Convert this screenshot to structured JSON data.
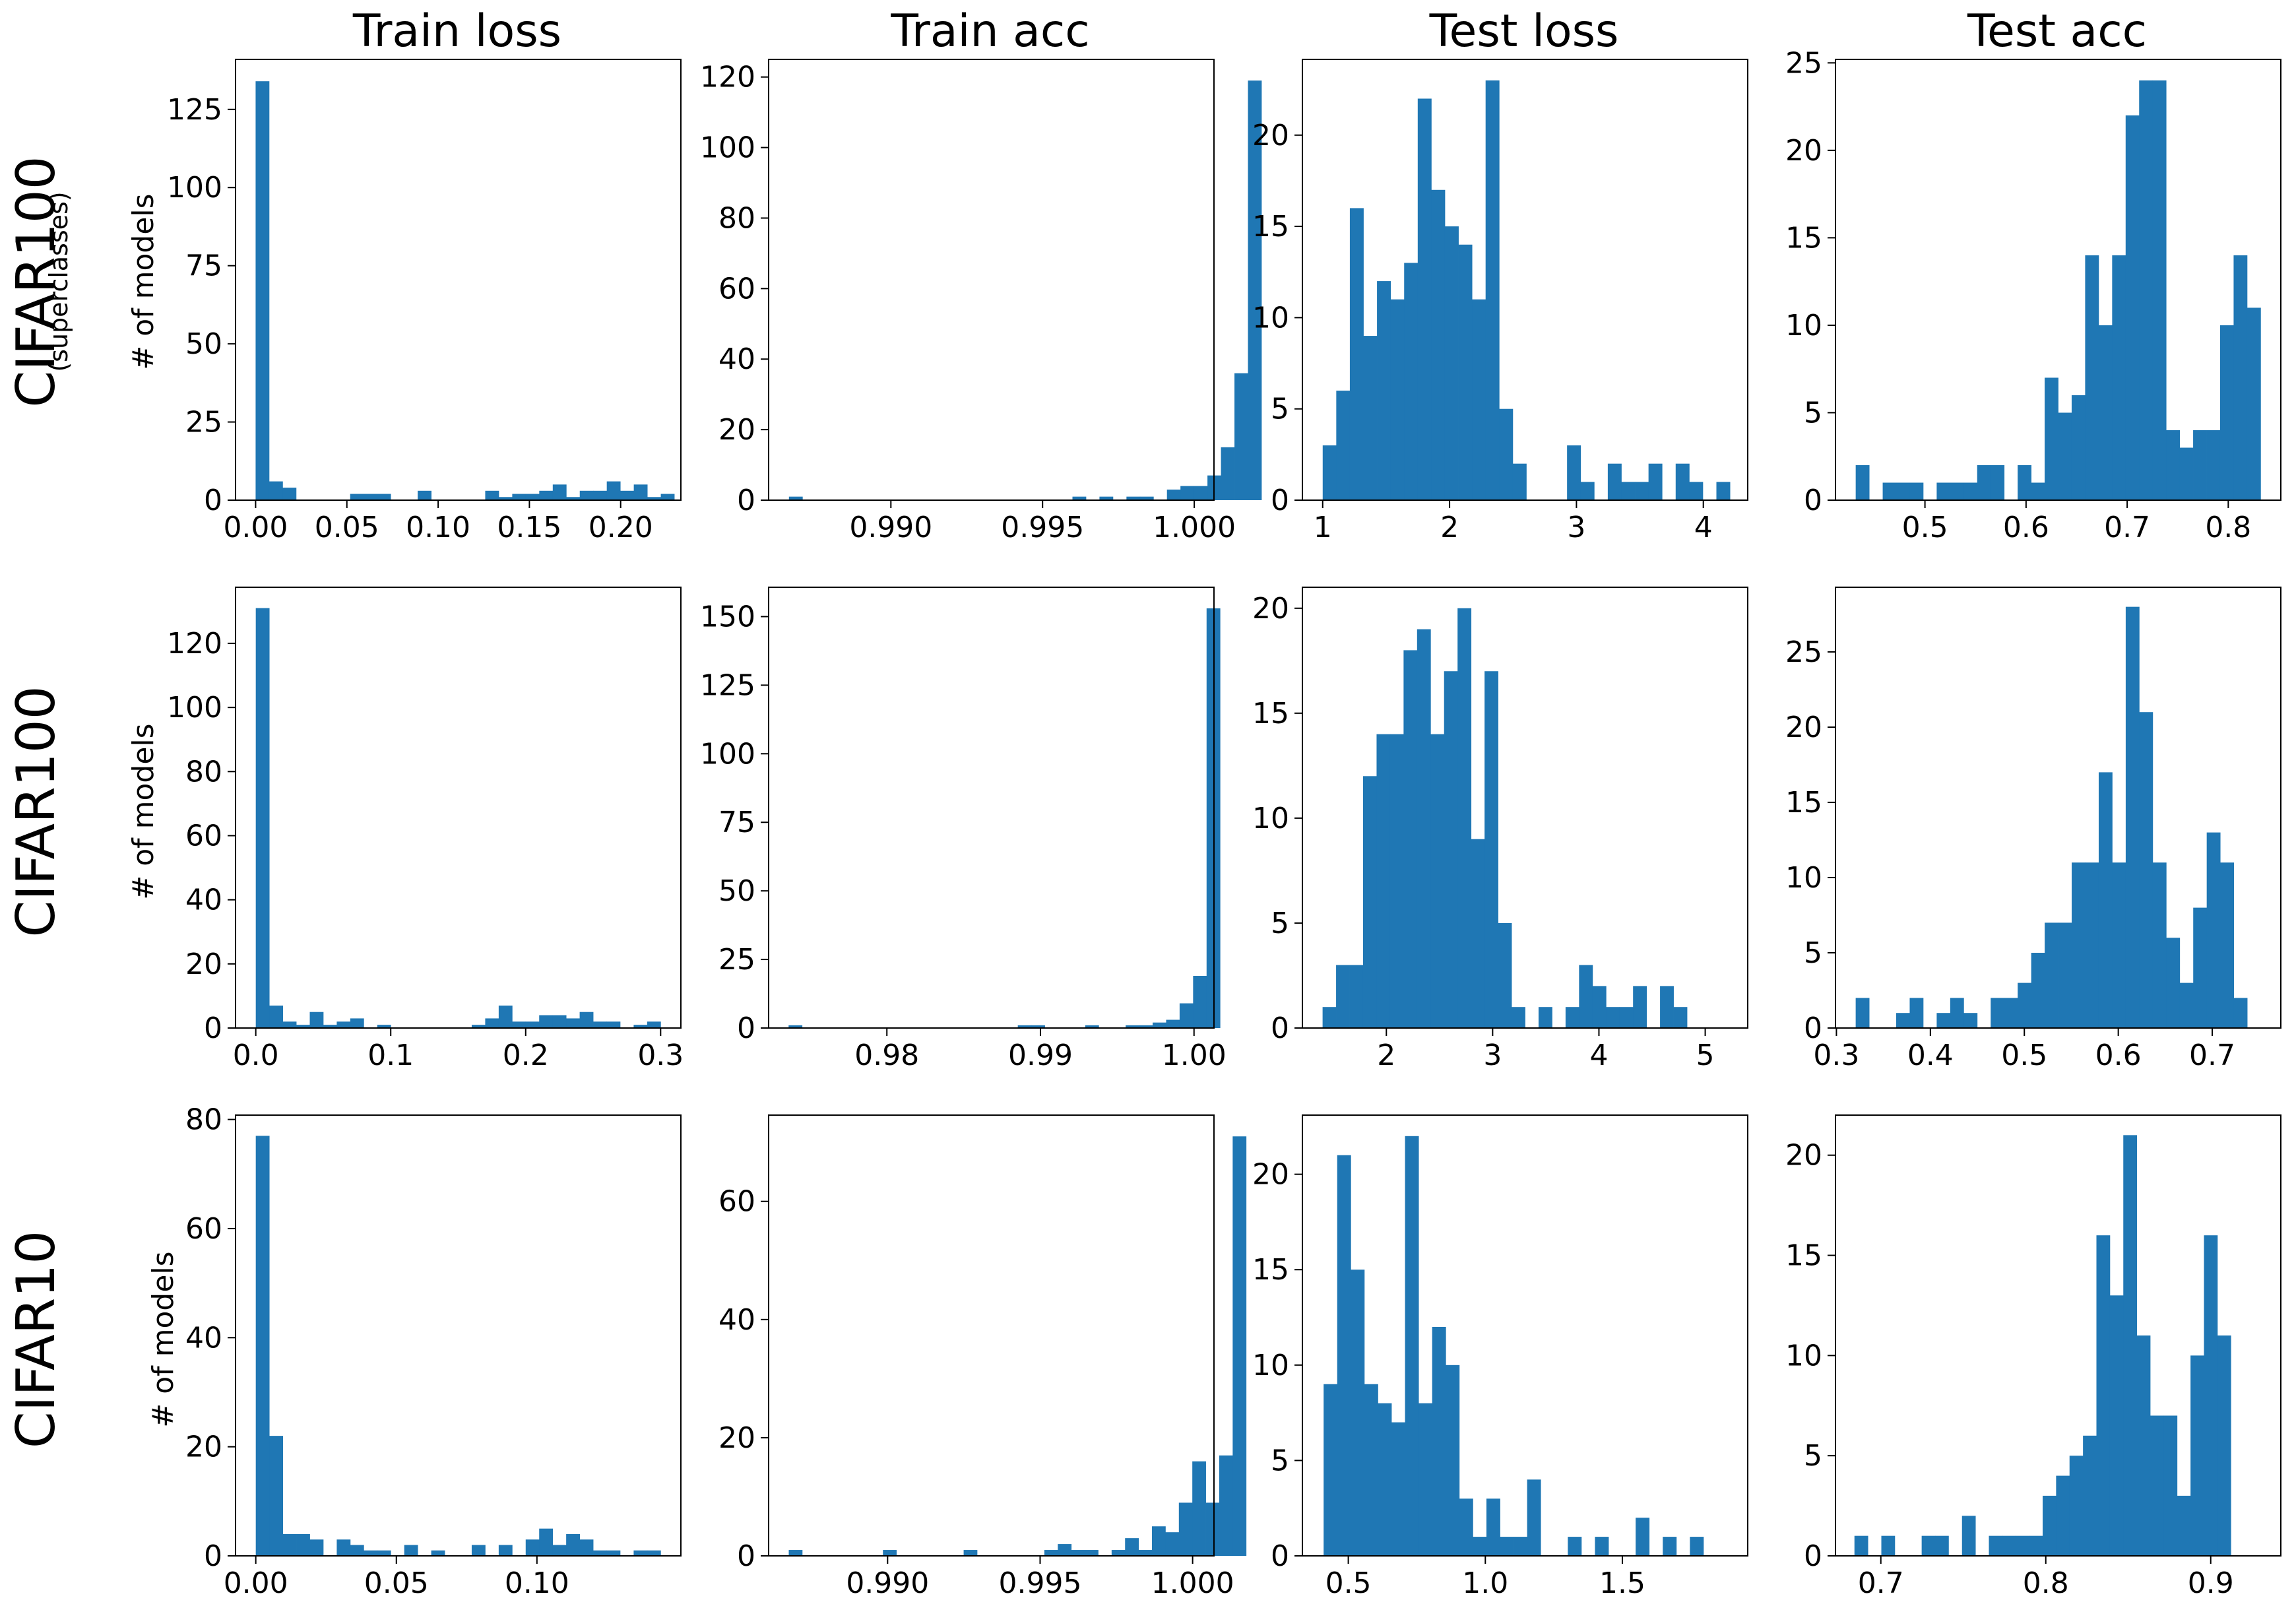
{
  "figure": {
    "bar_color": "#1f77b4",
    "column_titles": [
      "Train loss",
      "Train acc",
      "Test loss",
      "Test acc"
    ],
    "rows": [
      {
        "label": "CIFAR100",
        "sublabel": "(superclasses)",
        "ylabel": "# of models"
      },
      {
        "label": "CIFAR100",
        "sublabel": "",
        "ylabel": "# of models"
      },
      {
        "label": "CIFAR10",
        "sublabel": "",
        "ylabel": "# of models"
      }
    ]
  },
  "chart_data": [
    {
      "type": "bar",
      "title": "Train loss",
      "row_label": "CIFAR100 (superclasses)",
      "ylabel": "# of models",
      "xlabel": "",
      "xlim": [
        -0.011,
        0.233
      ],
      "ylim": [
        0,
        141
      ],
      "xticks": [
        0.0,
        0.05,
        0.1,
        0.15,
        0.2
      ],
      "xtick_labels": [
        "0.00",
        "0.05",
        "0.10",
        "0.15",
        "0.20"
      ],
      "yticks": [
        0,
        25,
        50,
        75,
        100,
        125
      ],
      "ytick_labels": [
        "0",
        "25",
        "50",
        "75",
        "100",
        "125"
      ],
      "bin_start": 0.0,
      "bin_width": 0.0074,
      "values": [
        134,
        6,
        4,
        0,
        0,
        0,
        0,
        2,
        2,
        2,
        0,
        0,
        3,
        0,
        0,
        0,
        0,
        3,
        1,
        2,
        2,
        3,
        5,
        1,
        3,
        3,
        6,
        3,
        5,
        1,
        2
      ]
    },
    {
      "type": "bar",
      "title": "Train acc",
      "row_label": "CIFAR100 (superclasses)",
      "ylabel": "",
      "xlabel": "",
      "xlim": [
        0.98597,
        1.00065
      ],
      "ylim": [
        0,
        125
      ],
      "xticks": [
        0.99,
        0.995,
        1.0
      ],
      "xtick_labels": [
        "0.990",
        "0.995",
        "1.000"
      ],
      "yticks": [
        0,
        20,
        40,
        60,
        80,
        100,
        120
      ],
      "ytick_labels": [
        "0",
        "20",
        "40",
        "60",
        "80",
        "100",
        "120"
      ],
      "bin_start": 0.98664,
      "bin_width": 0.000445,
      "values": [
        1,
        0,
        0,
        0,
        0,
        0,
        0,
        0,
        0,
        0,
        0,
        0,
        0,
        0,
        0,
        0,
        0,
        0,
        0,
        0,
        0,
        1,
        0,
        1,
        0,
        1,
        1,
        0,
        3,
        4,
        4,
        7,
        15,
        36,
        119
      ]
    },
    {
      "type": "bar",
      "title": "Test loss",
      "row_label": "CIFAR100 (superclasses)",
      "ylabel": "",
      "xlabel": "",
      "xlim": [
        0.84,
        4.35
      ],
      "ylim": [
        0,
        24.15
      ],
      "xticks": [
        1,
        2,
        3,
        4
      ],
      "xtick_labels": [
        "1",
        "2",
        "3",
        "4"
      ],
      "yticks": [
        0,
        5,
        10,
        15,
        20
      ],
      "ytick_labels": [
        "0",
        "5",
        "10",
        "15",
        "20"
      ],
      "bin_start": 1.0,
      "bin_width": 0.107,
      "values": [
        3,
        6,
        16,
        9,
        12,
        11,
        13,
        22,
        17,
        15,
        14,
        11,
        23,
        5,
        2,
        0,
        0,
        0,
        3,
        1,
        0,
        2,
        1,
        1,
        2,
        0,
        2,
        1,
        0,
        1
      ]
    },
    {
      "type": "bar",
      "title": "Test acc",
      "row_label": "CIFAR100 (superclasses)",
      "ylabel": "",
      "xlabel": "",
      "xlim": [
        0.4115,
        0.852
      ],
      "ylim": [
        0,
        25.2
      ],
      "xticks": [
        0.5,
        0.6,
        0.7,
        0.8
      ],
      "xtick_labels": [
        "0.5",
        "0.6",
        "0.7",
        "0.8"
      ],
      "yticks": [
        0,
        5,
        10,
        15,
        20,
        25
      ],
      "ytick_labels": [
        "0",
        "5",
        "10",
        "15",
        "20",
        "25"
      ],
      "bin_start": 0.4315,
      "bin_width": 0.01335,
      "values": [
        2,
        0,
        1,
        1,
        1,
        0,
        1,
        1,
        1,
        2,
        2,
        0,
        2,
        1,
        7,
        5,
        6,
        14,
        10,
        14,
        22,
        24,
        24,
        4,
        3,
        4,
        4,
        10,
        14,
        11
      ]
    },
    {
      "type": "bar",
      "title": "Train loss",
      "row_label": "CIFAR100",
      "ylabel": "# of models",
      "xlabel": "",
      "xlim": [
        -0.015,
        0.315
      ],
      "ylim": [
        0,
        137.5
      ],
      "xticks": [
        0.0,
        0.1,
        0.2,
        0.3
      ],
      "xtick_labels": [
        "0.0",
        "0.1",
        "0.2",
        "0.3"
      ],
      "yticks": [
        0,
        20,
        40,
        60,
        80,
        100,
        120
      ],
      "ytick_labels": [
        "0",
        "20",
        "40",
        "60",
        "80",
        "100",
        "120"
      ],
      "bin_start": 0.0,
      "bin_width": 0.01,
      "values": [
        131,
        7,
        2,
        1,
        5,
        1,
        2,
        3,
        0,
        1,
        0,
        0,
        0,
        0,
        0,
        0,
        1,
        3,
        7,
        2,
        2,
        4,
        4,
        3,
        5,
        2,
        2,
        0,
        1,
        2
      ]
    },
    {
      "type": "bar",
      "title": "Train acc",
      "row_label": "CIFAR100",
      "ylabel": "",
      "xlabel": "",
      "xlim": [
        0.9723,
        1.0013
      ],
      "ylim": [
        0,
        160.7
      ],
      "xticks": [
        0.98,
        0.99,
        1.0
      ],
      "xtick_labels": [
        "0.98",
        "0.99",
        "1.00"
      ],
      "yticks": [
        0,
        25,
        50,
        75,
        100,
        125,
        150
      ],
      "ytick_labels": [
        "0",
        "25",
        "50",
        "75",
        "100",
        "125",
        "150"
      ],
      "bin_start": 0.9736,
      "bin_width": 0.000878,
      "values": [
        1,
        0,
        0,
        0,
        0,
        0,
        0,
        0,
        0,
        0,
        0,
        0,
        0,
        0,
        0,
        0,
        0,
        1,
        1,
        0,
        0,
        0,
        1,
        0,
        0,
        1,
        1,
        2,
        3,
        9,
        19,
        153
      ]
    },
    {
      "type": "bar",
      "title": "Test loss",
      "row_label": "CIFAR100",
      "ylabel": "",
      "xlabel": "",
      "xlim": [
        1.21,
        5.4
      ],
      "ylim": [
        0,
        21
      ],
      "xticks": [
        2,
        3,
        4,
        5
      ],
      "xtick_labels": [
        "2",
        "3",
        "4",
        "5"
      ],
      "yticks": [
        0,
        5,
        10,
        15,
        20
      ],
      "ytick_labels": [
        "0",
        "5",
        "10",
        "15",
        "20"
      ],
      "bin_start": 1.4,
      "bin_width": 0.127,
      "values": [
        1,
        3,
        3,
        12,
        14,
        14,
        18,
        19,
        14,
        17,
        20,
        9,
        17,
        5,
        1,
        0,
        1,
        0,
        1,
        3,
        2,
        1,
        1,
        2,
        0,
        2,
        1
      ]
    },
    {
      "type": "bar",
      "title": "Test acc",
      "row_label": "CIFAR100",
      "ylabel": "",
      "xlabel": "",
      "xlim": [
        0.299,
        0.773
      ],
      "ylim": [
        0,
        29.3
      ],
      "xticks": [
        0.3,
        0.4,
        0.5,
        0.6,
        0.7
      ],
      "xtick_labels": [
        "0.3",
        "0.4",
        "0.5",
        "0.6",
        "0.7"
      ],
      "yticks": [
        0,
        5,
        10,
        15,
        20,
        25
      ],
      "ytick_labels": [
        "0",
        "5",
        "10",
        "15",
        "20",
        "25"
      ],
      "bin_start": 0.3205,
      "bin_width": 0.01437,
      "values": [
        2,
        0,
        0,
        1,
        2,
        0,
        1,
        2,
        1,
        0,
        2,
        2,
        3,
        5,
        7,
        7,
        11,
        11,
        17,
        11,
        28,
        21,
        11,
        6,
        3,
        8,
        13,
        11,
        2
      ]
    },
    {
      "type": "bar",
      "title": "Train loss",
      "row_label": "CIFAR10",
      "ylabel": "# of models",
      "xlabel": "",
      "xlim": [
        -0.0072,
        0.1512
      ],
      "ylim": [
        0,
        80.8
      ],
      "xticks": [
        0.0,
        0.05,
        0.1
      ],
      "xtick_labels": [
        "0.00",
        "0.05",
        "0.10"
      ],
      "yticks": [
        0,
        20,
        40,
        60,
        80
      ],
      "ytick_labels": [
        "0",
        "20",
        "40",
        "60",
        "80"
      ],
      "bin_start": 0.0,
      "bin_width": 0.0048,
      "values": [
        77,
        22,
        4,
        4,
        3,
        0,
        3,
        2,
        1,
        1,
        0,
        2,
        0,
        1,
        0,
        0,
        2,
        0,
        2,
        0,
        3,
        5,
        2,
        4,
        3,
        1,
        1,
        0,
        1,
        1
      ]
    },
    {
      "type": "bar",
      "title": "Train acc",
      "row_label": "CIFAR10",
      "ylabel": "",
      "xlabel": "",
      "xlim": [
        0.9861,
        1.0007
      ],
      "ylim": [
        0,
        74.6
      ],
      "xticks": [
        0.99,
        0.995,
        1.0
      ],
      "xtick_labels": [
        "0.990",
        "0.995",
        "1.000"
      ],
      "yticks": [
        0,
        20,
        40,
        60
      ],
      "ytick_labels": [
        "0",
        "20",
        "40",
        "60"
      ],
      "bin_start": 0.98676,
      "bin_width": 0.000441,
      "values": [
        1,
        0,
        0,
        0,
        0,
        0,
        0,
        1,
        0,
        0,
        0,
        0,
        0,
        1,
        0,
        0,
        0,
        0,
        0,
        1,
        2,
        1,
        1,
        0,
        1,
        3,
        1,
        5,
        4,
        9,
        16,
        9,
        17,
        71
      ]
    },
    {
      "type": "bar",
      "title": "Test loss",
      "row_label": "CIFAR10",
      "ylabel": "",
      "xlabel": "",
      "xlim": [
        0.3325,
        1.9575
      ],
      "ylim": [
        0,
        23.1
      ],
      "xticks": [
        0.5,
        1.0,
        1.5
      ],
      "xtick_labels": [
        "0.5",
        "1.0",
        "1.5"
      ],
      "yticks": [
        0,
        5,
        10,
        15,
        20
      ],
      "ytick_labels": [
        "0",
        "5",
        "10",
        "15",
        "20"
      ],
      "bin_start": 0.41,
      "bin_width": 0.0495,
      "values": [
        9,
        21,
        15,
        9,
        8,
        7,
        22,
        8,
        12,
        10,
        3,
        1,
        3,
        1,
        1,
        4,
        0,
        0,
        1,
        0,
        1,
        0,
        0,
        2,
        0,
        1,
        0,
        1
      ]
    },
    {
      "type": "bar",
      "title": "Test acc",
      "row_label": "CIFAR10",
      "ylabel": "",
      "xlabel": "",
      "xlim": [
        0.6725,
        0.9425
      ],
      "ylim": [
        0,
        22
      ],
      "xticks": [
        0.7,
        0.8,
        0.9
      ],
      "xtick_labels": [
        "0.7",
        "0.8",
        "0.9"
      ],
      "yticks": [
        0,
        5,
        10,
        15,
        20
      ],
      "ytick_labels": [
        "0",
        "5",
        "10",
        "15",
        "20"
      ],
      "bin_start": 0.684,
      "bin_width": 0.00815,
      "values": [
        1,
        0,
        1,
        0,
        0,
        1,
        1,
        0,
        2,
        0,
        1,
        1,
        1,
        1,
        3,
        4,
        5,
        6,
        16,
        13,
        21,
        11,
        7,
        7,
        3,
        10,
        16,
        11
      ]
    }
  ]
}
